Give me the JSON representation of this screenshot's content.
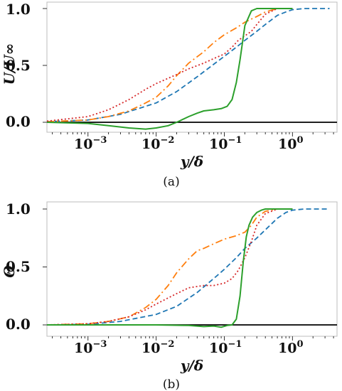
{
  "panels": [
    {
      "caption": "(a)",
      "ylabel": "U/U∞",
      "xlabel": "y/δ",
      "xlabels": [
        "10",
        "10",
        "10",
        "10"
      ],
      "xexps": [
        "−3",
        "−2",
        "−1",
        "0"
      ],
      "ylabels": [
        "0.0",
        "0.5",
        "1.0"
      ]
    },
    {
      "caption": "(b)",
      "ylabel": "Θ",
      "xlabel": "y/δ",
      "xlabels": [
        "10",
        "10",
        "10",
        "10"
      ],
      "xexps": [
        "−3",
        "−2",
        "−1",
        "0"
      ],
      "ylabels": [
        "0.0",
        "0.5",
        "1.0"
      ]
    }
  ],
  "chart_data": [
    {
      "type": "line",
      "title": "",
      "xlabel": "y/δ",
      "ylabel": "U/U∞",
      "xscale": "log",
      "xlim": [
        0.00025,
        4.5
      ],
      "ylim": [
        -0.06,
        1.05
      ],
      "xticks": [
        0.001,
        0.01,
        0.1,
        1
      ],
      "yticks": [
        0.0,
        0.5,
        1.0
      ],
      "hline": 0.0,
      "grid": false,
      "legend": "none",
      "series": [
        {
          "color": "#1f77b4",
          "style": "dashed",
          "x": [
            0.00025,
            0.001,
            0.003,
            0.01,
            0.02,
            0.04,
            0.07,
            0.1,
            0.15,
            0.2,
            0.3,
            0.4,
            0.6,
            0.8,
            1.0,
            1.5,
            2.0,
            3.5
          ],
          "y": [
            0.005,
            0.02,
            0.07,
            0.17,
            0.27,
            0.4,
            0.51,
            0.58,
            0.66,
            0.72,
            0.8,
            0.86,
            0.94,
            0.97,
            0.99,
            1.0,
            1.0,
            1.0
          ]
        },
        {
          "color": "#ff7f0e",
          "style": "dashdot",
          "x": [
            0.00025,
            0.001,
            0.002,
            0.004,
            0.007,
            0.01,
            0.015,
            0.02,
            0.03,
            0.05,
            0.07,
            0.1,
            0.15,
            0.2,
            0.3,
            0.4,
            0.6,
            0.8,
            1.0
          ],
          "y": [
            0.005,
            0.02,
            0.05,
            0.1,
            0.17,
            0.22,
            0.32,
            0.41,
            0.52,
            0.62,
            0.7,
            0.77,
            0.83,
            0.88,
            0.93,
            0.97,
            1.0,
            1.0,
            1.0
          ]
        },
        {
          "color": "#d62728",
          "style": "dotted",
          "x": [
            0.00025,
            0.001,
            0.002,
            0.004,
            0.007,
            0.01,
            0.02,
            0.03,
            0.05,
            0.07,
            0.1,
            0.13,
            0.16,
            0.2,
            0.25,
            0.3,
            0.4,
            0.6,
            0.8,
            1.0
          ],
          "y": [
            0.01,
            0.05,
            0.11,
            0.2,
            0.29,
            0.34,
            0.42,
            0.47,
            0.52,
            0.56,
            0.6,
            0.66,
            0.72,
            0.76,
            0.8,
            0.86,
            0.95,
            1.0,
            1.0,
            1.0
          ]
        },
        {
          "color": "#2ca02c",
          "style": "solid",
          "x": [
            0.00025,
            0.001,
            0.002,
            0.004,
            0.007,
            0.01,
            0.015,
            0.02,
            0.03,
            0.04,
            0.05,
            0.07,
            0.09,
            0.11,
            0.13,
            0.15,
            0.17,
            0.2,
            0.25,
            0.3,
            0.4,
            0.6,
            0.8,
            1.0
          ],
          "y": [
            0.0,
            -0.01,
            -0.03,
            -0.05,
            -0.06,
            -0.05,
            -0.03,
            0.0,
            0.05,
            0.08,
            0.1,
            0.11,
            0.12,
            0.14,
            0.2,
            0.35,
            0.55,
            0.85,
            0.98,
            1.0,
            1.0,
            1.0,
            1.0,
            1.0
          ]
        }
      ]
    },
    {
      "type": "line",
      "title": "",
      "xlabel": "y/δ",
      "ylabel": "Θ",
      "xscale": "log",
      "xlim": [
        0.00025,
        4.5
      ],
      "ylim": [
        -0.06,
        1.05
      ],
      "xticks": [
        0.001,
        0.01,
        0.1,
        1
      ],
      "yticks": [
        0.0,
        0.5,
        1.0
      ],
      "hline": 0.0,
      "grid": false,
      "legend": "none",
      "series": [
        {
          "color": "#1f77b4",
          "style": "dashed",
          "x": [
            0.00025,
            0.001,
            0.003,
            0.01,
            0.02,
            0.04,
            0.07,
            0.1,
            0.15,
            0.2,
            0.3,
            0.4,
            0.6,
            0.8,
            1.0,
            1.5,
            2.0,
            3.5
          ],
          "y": [
            0.0,
            0.005,
            0.03,
            0.09,
            0.16,
            0.28,
            0.4,
            0.48,
            0.58,
            0.66,
            0.75,
            0.82,
            0.92,
            0.97,
            0.99,
            1.0,
            1.0,
            1.0
          ]
        },
        {
          "color": "#ff7f0e",
          "style": "dashdot",
          "x": [
            0.00025,
            0.001,
            0.002,
            0.004,
            0.007,
            0.01,
            0.015,
            0.02,
            0.03,
            0.04,
            0.05,
            0.07,
            0.1,
            0.15,
            0.2,
            0.25,
            0.3,
            0.4,
            0.6,
            0.8,
            1.0
          ],
          "y": [
            0.0,
            0.01,
            0.03,
            0.07,
            0.15,
            0.22,
            0.34,
            0.45,
            0.57,
            0.64,
            0.66,
            0.7,
            0.74,
            0.77,
            0.8,
            0.86,
            0.93,
            0.98,
            1.0,
            1.0,
            1.0
          ]
        },
        {
          "color": "#d62728",
          "style": "dotted",
          "x": [
            0.00025,
            0.001,
            0.002,
            0.004,
            0.007,
            0.01,
            0.02,
            0.03,
            0.05,
            0.07,
            0.1,
            0.13,
            0.16,
            0.2,
            0.25,
            0.3,
            0.4,
            0.6,
            0.8,
            1.0
          ],
          "y": [
            0.0,
            0.01,
            0.03,
            0.07,
            0.13,
            0.18,
            0.27,
            0.32,
            0.34,
            0.34,
            0.36,
            0.4,
            0.47,
            0.58,
            0.72,
            0.86,
            0.96,
            1.0,
            1.0,
            1.0
          ]
        },
        {
          "color": "#2ca02c",
          "style": "solid",
          "x": [
            0.00025,
            0.01,
            0.03,
            0.05,
            0.07,
            0.09,
            0.11,
            0.13,
            0.15,
            0.17,
            0.19,
            0.21,
            0.23,
            0.26,
            0.3,
            0.35,
            0.4,
            0.5,
            0.6,
            0.8,
            1.0
          ],
          "y": [
            0.0,
            0.0,
            -0.005,
            -0.015,
            -0.01,
            -0.02,
            -0.005,
            0.0,
            0.05,
            0.25,
            0.55,
            0.76,
            0.86,
            0.93,
            0.97,
            0.99,
            1.0,
            1.0,
            1.0,
            1.0,
            1.0
          ]
        }
      ]
    }
  ]
}
